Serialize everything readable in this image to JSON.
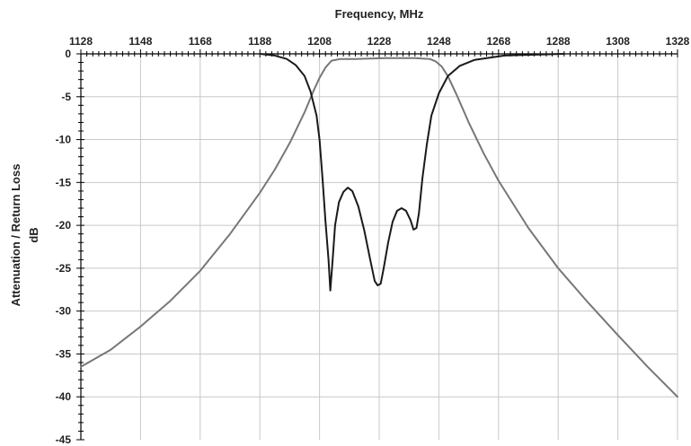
{
  "chart_data": {
    "type": "line",
    "xlabel": "Frequency, MHz",
    "ylabel_lines": [
      "Attenuation / Return Loss",
      "dB"
    ],
    "xlim": [
      1128,
      1328
    ],
    "ylim": [
      -45,
      0
    ],
    "x_ticks": [
      1128,
      1148,
      1168,
      1188,
      1208,
      1228,
      1248,
      1268,
      1288,
      1308,
      1328
    ],
    "y_ticks": [
      0,
      -5,
      -10,
      -15,
      -20,
      -25,
      -30,
      -35,
      -40,
      -45
    ],
    "x_axis_position": "top",
    "grid": true,
    "legend": "none",
    "series": [
      {
        "color": "#777777",
        "points": [
          [
            1128,
            -36.5
          ],
          [
            1138,
            -34.5
          ],
          [
            1148,
            -31.8
          ],
          [
            1158,
            -28.8
          ],
          [
            1168,
            -25.3
          ],
          [
            1178,
            -21.0
          ],
          [
            1188,
            -16.2
          ],
          [
            1193,
            -13.5
          ],
          [
            1198,
            -10.4
          ],
          [
            1203,
            -6.8
          ],
          [
            1206,
            -4.3
          ],
          [
            1208,
            -2.8
          ],
          [
            1210,
            -1.6
          ],
          [
            1212,
            -0.8
          ],
          [
            1215,
            -0.6
          ],
          [
            1220,
            -0.6
          ],
          [
            1230,
            -0.5
          ],
          [
            1240,
            -0.5
          ],
          [
            1245,
            -0.6
          ],
          [
            1247,
            -0.9
          ],
          [
            1249,
            -1.5
          ],
          [
            1251,
            -2.6
          ],
          [
            1254,
            -4.8
          ],
          [
            1258,
            -8.0
          ],
          [
            1263,
            -11.6
          ],
          [
            1268,
            -14.8
          ],
          [
            1278,
            -20.3
          ],
          [
            1288,
            -25.0
          ],
          [
            1298,
            -29.0
          ],
          [
            1308,
            -32.8
          ],
          [
            1318,
            -36.5
          ],
          [
            1328,
            -40.0
          ]
        ]
      },
      {
        "color": "#1a1a1a",
        "points": [
          [
            1188,
            0.0
          ],
          [
            1193,
            -0.2
          ],
          [
            1197,
            -0.6
          ],
          [
            1200,
            -1.3
          ],
          [
            1203,
            -2.6
          ],
          [
            1205,
            -4.4
          ],
          [
            1207,
            -7.2
          ],
          [
            1208,
            -10.0
          ],
          [
            1209,
            -14.5
          ],
          [
            1210,
            -19.5
          ],
          [
            1211,
            -24.0
          ],
          [
            1211.6,
            -27.6
          ],
          [
            1212.4,
            -24.0
          ],
          [
            1213.2,
            -20.0
          ],
          [
            1214.5,
            -17.3
          ],
          [
            1216,
            -16.1
          ],
          [
            1217.5,
            -15.6
          ],
          [
            1219,
            -16.0
          ],
          [
            1221,
            -17.8
          ],
          [
            1223,
            -20.6
          ],
          [
            1225,
            -24.0
          ],
          [
            1226.5,
            -26.5
          ],
          [
            1227.5,
            -27.0
          ],
          [
            1228.5,
            -26.8
          ],
          [
            1229.5,
            -25.0
          ],
          [
            1231,
            -22.0
          ],
          [
            1232.5,
            -19.6
          ],
          [
            1234,
            -18.3
          ],
          [
            1235.5,
            -18.0
          ],
          [
            1237,
            -18.3
          ],
          [
            1238.5,
            -19.4
          ],
          [
            1239.5,
            -20.5
          ],
          [
            1240.5,
            -20.3
          ],
          [
            1241.3,
            -18.6
          ],
          [
            1242.5,
            -14.5
          ],
          [
            1244,
            -10.5
          ],
          [
            1245.5,
            -7.2
          ],
          [
            1248,
            -4.6
          ],
          [
            1251,
            -2.6
          ],
          [
            1255,
            -1.4
          ],
          [
            1260,
            -0.7
          ],
          [
            1270,
            -0.2
          ],
          [
            1290,
            0.0
          ]
        ]
      }
    ]
  }
}
